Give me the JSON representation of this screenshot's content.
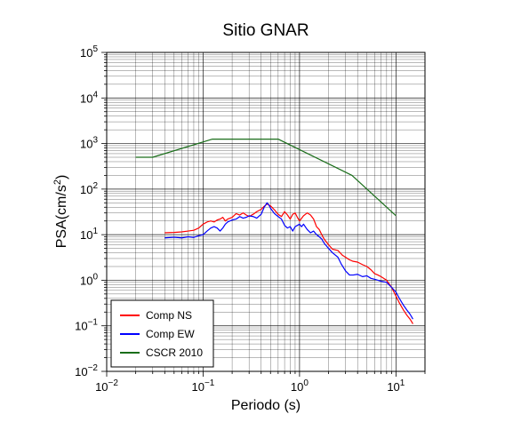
{
  "chart_data": {
    "type": "line",
    "title": "Sitio GNAR",
    "xlabel": "Periodo (s)",
    "ylabel_base": "PSA(cm/s",
    "ylabel_sup": "2",
    "ylabel_end": ")",
    "xscale": "log",
    "yscale": "log",
    "xlim": [
      0.01,
      20
    ],
    "ylim": [
      0.01,
      100000
    ],
    "grid": true,
    "legend_position": "bottom-left",
    "x_ticks": [
      {
        "value": 0.01,
        "base": "10",
        "exp": "−2"
      },
      {
        "value": 0.1,
        "base": "10",
        "exp": "−1"
      },
      {
        "value": 1,
        "base": "10",
        "exp": "0"
      },
      {
        "value": 10,
        "base": "10",
        "exp": "1"
      }
    ],
    "y_ticks": [
      {
        "value": 0.01,
        "base": "10",
        "exp": "−2"
      },
      {
        "value": 0.1,
        "base": "10",
        "exp": "−1"
      },
      {
        "value": 1,
        "base": "10",
        "exp": "0"
      },
      {
        "value": 10,
        "base": "10",
        "exp": "1"
      },
      {
        "value": 100,
        "base": "10",
        "exp": "2"
      },
      {
        "value": 1000,
        "base": "10",
        "exp": "3"
      },
      {
        "value": 10000,
        "base": "10",
        "exp": "4"
      },
      {
        "value": 100000,
        "base": "10",
        "exp": "5"
      }
    ],
    "series": [
      {
        "name": "Comp NS",
        "color": "#ff0000",
        "points": [
          [
            0.04,
            11
          ],
          [
            0.05,
            11.2
          ],
          [
            0.06,
            11.5
          ],
          [
            0.07,
            12
          ],
          [
            0.08,
            12.5
          ],
          [
            0.09,
            14
          ],
          [
            0.1,
            17
          ],
          [
            0.11,
            19
          ],
          [
            0.12,
            20
          ],
          [
            0.13,
            19
          ],
          [
            0.14,
            21
          ],
          [
            0.15,
            22
          ],
          [
            0.16,
            24
          ],
          [
            0.17,
            20
          ],
          [
            0.18,
            22
          ],
          [
            0.2,
            24
          ],
          [
            0.22,
            29
          ],
          [
            0.24,
            27
          ],
          [
            0.26,
            30
          ],
          [
            0.28,
            27
          ],
          [
            0.3,
            25
          ],
          [
            0.33,
            28
          ],
          [
            0.36,
            32
          ],
          [
            0.4,
            36
          ],
          [
            0.43,
            42
          ],
          [
            0.46,
            47
          ],
          [
            0.48,
            45
          ],
          [
            0.5,
            43
          ],
          [
            0.55,
            35
          ],
          [
            0.6,
            28
          ],
          [
            0.65,
            25
          ],
          [
            0.7,
            32
          ],
          [
            0.75,
            27
          ],
          [
            0.8,
            22
          ],
          [
            0.85,
            28
          ],
          [
            0.9,
            30
          ],
          [
            0.95,
            24
          ],
          [
            1.0,
            20
          ],
          [
            1.1,
            26
          ],
          [
            1.2,
            30
          ],
          [
            1.3,
            27
          ],
          [
            1.4,
            22
          ],
          [
            1.5,
            15
          ],
          [
            1.6,
            13
          ],
          [
            1.7,
            10
          ],
          [
            1.8,
            8
          ],
          [
            2.0,
            6
          ],
          [
            2.2,
            4.8
          ],
          [
            2.5,
            4.5
          ],
          [
            2.8,
            3.5
          ],
          [
            3.0,
            3.2
          ],
          [
            3.3,
            2.8
          ],
          [
            3.6,
            2.6
          ],
          [
            4.0,
            2.5
          ],
          [
            4.5,
            2.2
          ],
          [
            5.0,
            2.0
          ],
          [
            5.5,
            1.7
          ],
          [
            6.0,
            1.4
          ],
          [
            6.5,
            1.3
          ],
          [
            7.0,
            1.2
          ],
          [
            8.0,
            1.0
          ],
          [
            9.0,
            0.7
          ],
          [
            10.0,
            0.45
          ],
          [
            11.0,
            0.3
          ],
          [
            12.0,
            0.22
          ],
          [
            13.0,
            0.17
          ],
          [
            14.0,
            0.14
          ],
          [
            15.0,
            0.11
          ]
        ]
      },
      {
        "name": "Comp EW",
        "color": "#0000ff",
        "points": [
          [
            0.04,
            8.5
          ],
          [
            0.05,
            8.8
          ],
          [
            0.06,
            8.5
          ],
          [
            0.07,
            9
          ],
          [
            0.08,
            8.7
          ],
          [
            0.09,
            9.5
          ],
          [
            0.1,
            10
          ],
          [
            0.11,
            12
          ],
          [
            0.12,
            14
          ],
          [
            0.13,
            15
          ],
          [
            0.14,
            14
          ],
          [
            0.15,
            12
          ],
          [
            0.16,
            14
          ],
          [
            0.17,
            17
          ],
          [
            0.18,
            19
          ],
          [
            0.2,
            21
          ],
          [
            0.22,
            22
          ],
          [
            0.24,
            25
          ],
          [
            0.26,
            23
          ],
          [
            0.28,
            24
          ],
          [
            0.3,
            26
          ],
          [
            0.33,
            25
          ],
          [
            0.36,
            23
          ],
          [
            0.4,
            28
          ],
          [
            0.43,
            40
          ],
          [
            0.46,
            50
          ],
          [
            0.48,
            45
          ],
          [
            0.5,
            38
          ],
          [
            0.55,
            29
          ],
          [
            0.6,
            25
          ],
          [
            0.65,
            22
          ],
          [
            0.7,
            16
          ],
          [
            0.75,
            14
          ],
          [
            0.8,
            15
          ],
          [
            0.85,
            12
          ],
          [
            0.9,
            15
          ],
          [
            0.95,
            16
          ],
          [
            1.0,
            17
          ],
          [
            1.05,
            15
          ],
          [
            1.1,
            17
          ],
          [
            1.2,
            13
          ],
          [
            1.3,
            11
          ],
          [
            1.4,
            12
          ],
          [
            1.5,
            10
          ],
          [
            1.6,
            9
          ],
          [
            1.7,
            8
          ],
          [
            1.8,
            6.5
          ],
          [
            2.0,
            5
          ],
          [
            2.2,
            4
          ],
          [
            2.5,
            3.2
          ],
          [
            2.7,
            2.3
          ],
          [
            3.0,
            1.6
          ],
          [
            3.3,
            1.3
          ],
          [
            3.6,
            1.3
          ],
          [
            4.0,
            1.35
          ],
          [
            4.5,
            1.2
          ],
          [
            5.0,
            1.25
          ],
          [
            5.5,
            1.1
          ],
          [
            6.0,
            1.05
          ],
          [
            6.5,
            1.0
          ],
          [
            7.0,
            0.95
          ],
          [
            8.0,
            0.9
          ],
          [
            9.0,
            0.7
          ],
          [
            10.0,
            0.55
          ],
          [
            11.0,
            0.38
          ],
          [
            12.0,
            0.28
          ],
          [
            13.0,
            0.22
          ],
          [
            14.0,
            0.18
          ],
          [
            15.0,
            0.14
          ]
        ]
      },
      {
        "name": "CSCR 2010",
        "color": "#1a6e1a",
        "points": [
          [
            0.02,
            500
          ],
          [
            0.03,
            500
          ],
          [
            0.125,
            1250
          ],
          [
            0.6,
            1250
          ],
          [
            3.5,
            200
          ],
          [
            10,
            26
          ]
        ]
      }
    ]
  }
}
